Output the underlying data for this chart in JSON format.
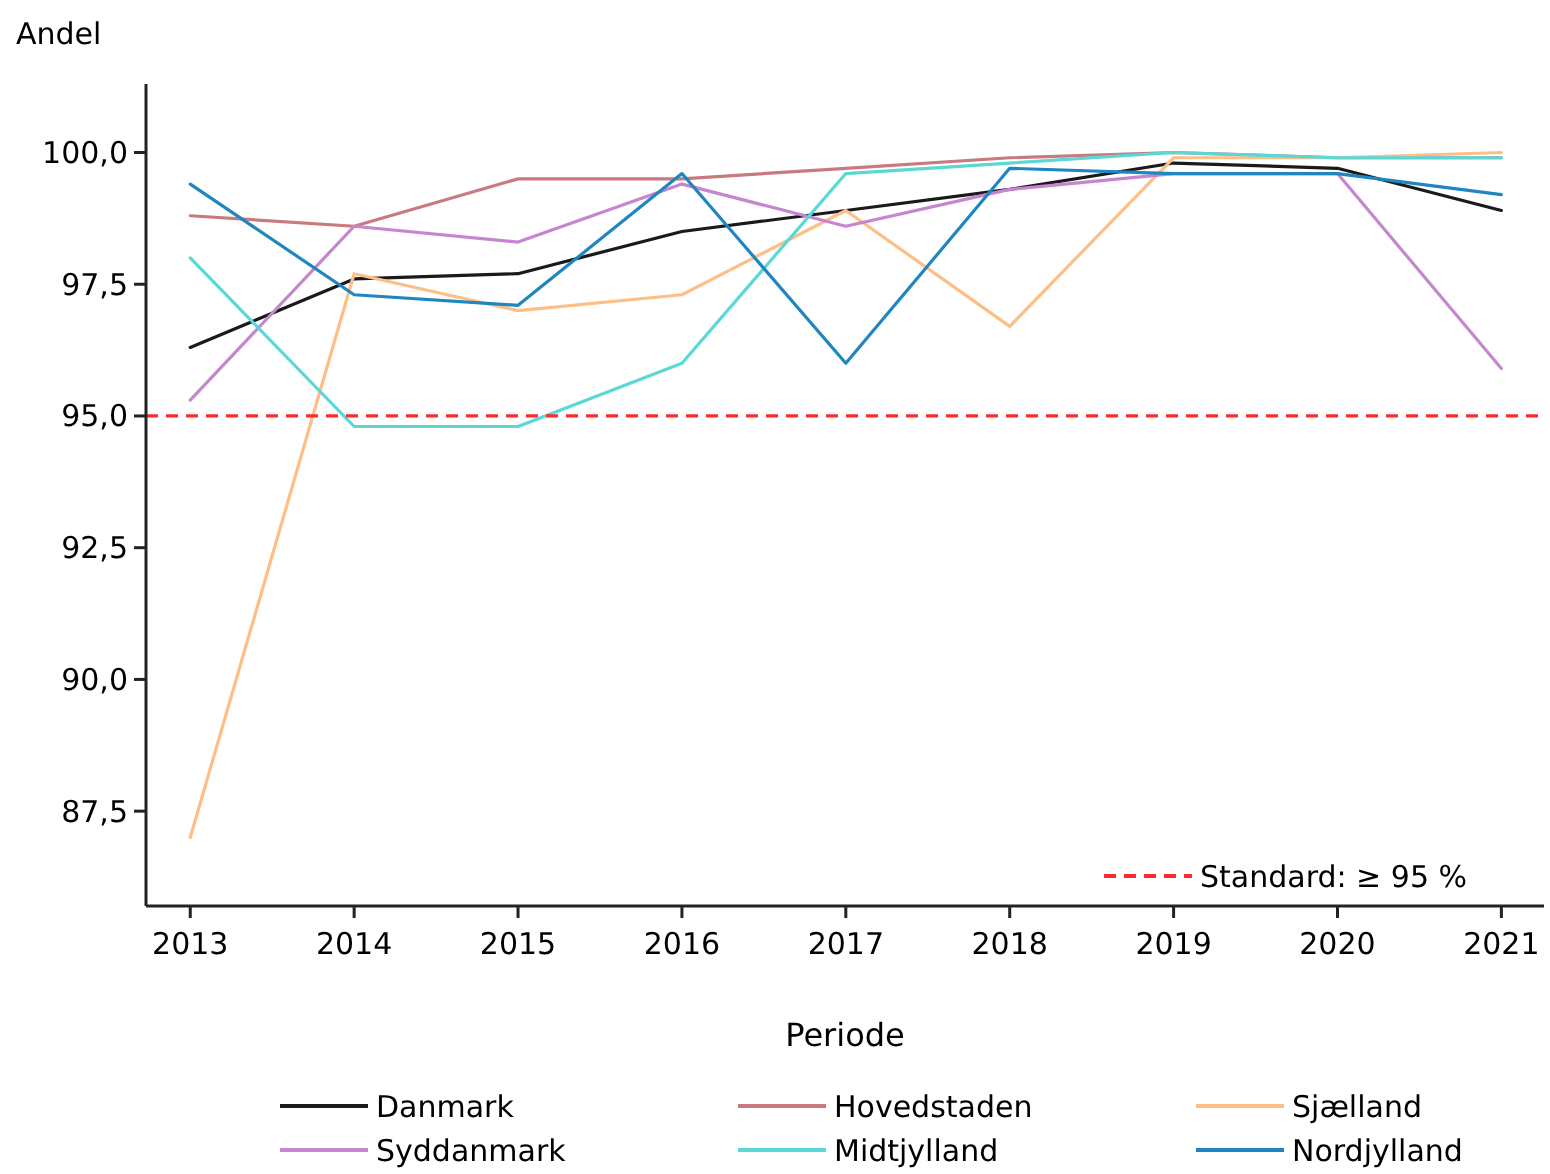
{
  "chart_data": {
    "type": "line",
    "ylabel": "Andel",
    "xlabel": "Periode",
    "x": [
      2013,
      2014,
      2015,
      2016,
      2017,
      2018,
      2019,
      2020,
      2021
    ],
    "xlim": [
      2012.73,
      2021.26
    ],
    "xticks": [
      2013,
      2014,
      2015,
      2016,
      2017,
      2018,
      2019,
      2020,
      2021
    ],
    "ylim": [
      85.7,
      101.3
    ],
    "yticks": [
      {
        "value": 87.5,
        "label": "87,5"
      },
      {
        "value": 90,
        "label": "90,0"
      },
      {
        "value": 92.5,
        "label": "92,5"
      },
      {
        "value": 95,
        "label": "95,0"
      },
      {
        "value": 97.5,
        "label": "97,5"
      },
      {
        "value": 100,
        "label": "100,0"
      }
    ],
    "series": [
      {
        "name": "Danmark",
        "color": "#1a1a1a",
        "values": [
          96.3,
          97.6,
          97.7,
          98.5,
          98.9,
          99.3,
          99.8,
          99.7,
          98.9
        ]
      },
      {
        "name": "Hovedstaden",
        "color": "#c87a80",
        "values": [
          98.8,
          98.6,
          99.5,
          99.5,
          99.7,
          99.9,
          100.0,
          99.9,
          99.9
        ]
      },
      {
        "name": "Sjælland",
        "color": "#fdbf86",
        "values": [
          87.0,
          97.7,
          97.0,
          97.3,
          98.9,
          96.7,
          99.9,
          99.9,
          100.0
        ]
      },
      {
        "name": "Syddanmark",
        "color": "#c586cf",
        "values": [
          95.3,
          98.6,
          98.3,
          99.4,
          98.6,
          99.3,
          99.6,
          99.6,
          95.9
        ]
      },
      {
        "name": "Midtjylland",
        "color": "#5ad8d6",
        "values": [
          98.0,
          94.8,
          94.8,
          96.0,
          99.6,
          99.8,
          100.0,
          99.9,
          99.9
        ]
      },
      {
        "name": "Nordjylland",
        "color": "#1f86c0",
        "values": [
          99.4,
          97.3,
          97.1,
          99.6,
          96.0,
          99.7,
          99.6,
          99.6,
          99.2
        ]
      }
    ],
    "ref_lines": [
      {
        "axis": "y",
        "value": 95,
        "label": "Standard: ≥ 95 %",
        "color": "#ff2a2a",
        "line_style": "dashed"
      }
    ],
    "grid": false,
    "legend": "bottom",
    "marker": "none",
    "line_style": "solid"
  }
}
